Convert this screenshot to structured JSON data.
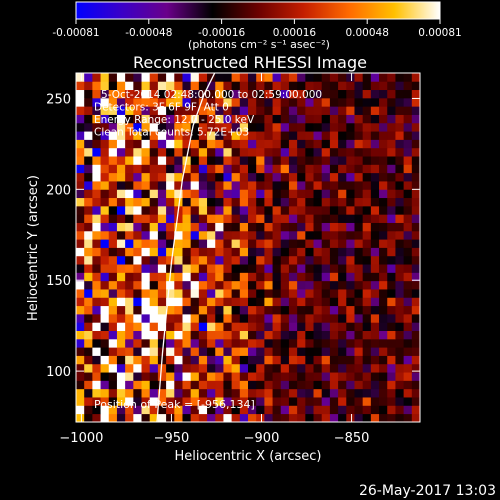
{
  "colorbar": {
    "ticks": [
      "-0.00081",
      "-0.00048",
      "-0.00016",
      "0.00016",
      "0.00048",
      "0.00081"
    ],
    "units": "(photons cm⁻² s⁻¹ asec⁻²)",
    "colors": [
      "#0000ff",
      "#3a00c8",
      "#6a008a",
      "#000000",
      "#6b0000",
      "#c41e00",
      "#ff6a00",
      "#ffc000",
      "#ffffff"
    ]
  },
  "chart_data": {
    "type": "heatmap",
    "title": "Reconstructed RHESSI Image",
    "xlabel": "Heliocentric X (arcsec)",
    "ylabel": "Heliocentric Y (arcsec)",
    "xlim": [
      -1003,
      -812
    ],
    "ylim": [
      72,
      264
    ],
    "x_ticks": [
      {
        "value": -1000,
        "label": "−1000"
      },
      {
        "value": -950,
        "label": "−950"
      },
      {
        "value": -900,
        "label": "−900"
      },
      {
        "value": -850,
        "label": "−850"
      }
    ],
    "y_ticks": [
      {
        "value": 100,
        "label": "100"
      },
      {
        "value": 150,
        "label": "150"
      },
      {
        "value": 200,
        "label": "200"
      },
      {
        "value": 250,
        "label": "250"
      }
    ],
    "value_range": [
      -0.00081,
      0.00081
    ],
    "limb_curve": {
      "x": [
        -958,
        -955,
        -950,
        -944,
        -938,
        -932,
        -926
      ],
      "y": [
        72,
        110,
        160,
        205,
        235,
        252,
        264
      ]
    },
    "annotations": [
      "5-Oct-2014 02:48:00.000 to 02:59:00.000",
      "Detectors: 3F 6F 9F, Att 0",
      "Energy Range: 12.0 - 25.0 keV",
      "Clean    Total counts: 5.72E+03"
    ],
    "peak_label": "Position of Peak = [-956,134]"
  },
  "footer": {
    "date": "26-May-2017 13:03"
  }
}
